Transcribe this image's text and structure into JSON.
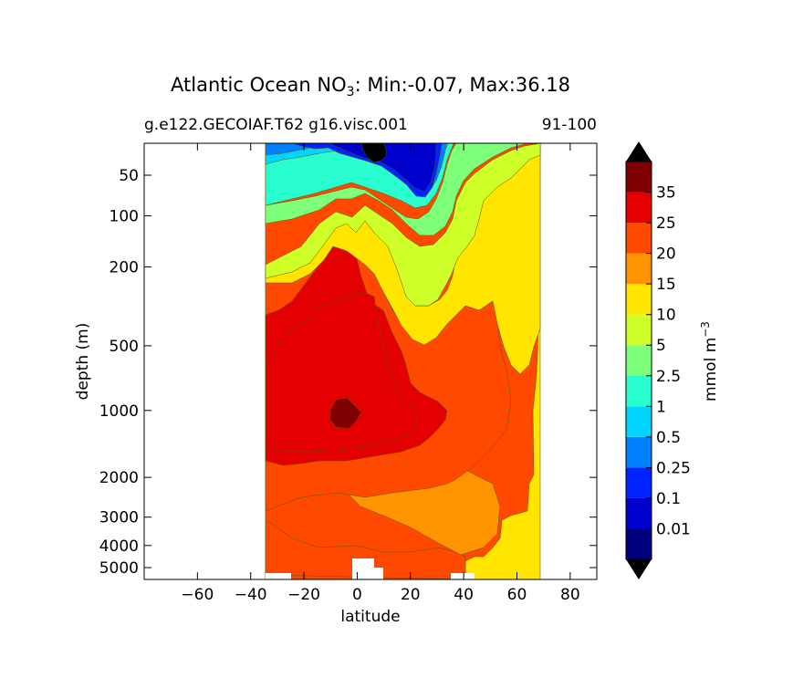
{
  "chart_data": {
    "type": "heatmap",
    "title_prefix": "Atlantic Ocean NO",
    "title_subscript": "3",
    "title_suffix": ": Min:-0.07, Max:36.18",
    "subtitle_left": "g.e122.GECOIAF.T62 g16.visc.001",
    "subtitle_right": "91-100",
    "xlabel": "latitude",
    "ylabel": "depth (m)",
    "xlim": [
      -80,
      90
    ],
    "x_ticks": [
      -60,
      -40,
      -20,
      0,
      20,
      40,
      60,
      80
    ],
    "x_tick_labels": [
      "−60",
      "−40",
      "−20",
      "0",
      "20",
      "40",
      "60",
      "80"
    ],
    "y_scale": "log-like (stretched depth)",
    "y_ticks": [
      50,
      100,
      200,
      500,
      1000,
      2000,
      3000,
      4000,
      5000
    ],
    "y_tick_labels": [
      "50",
      "100",
      "200",
      "500",
      "1000",
      "2000",
      "3000",
      "4000",
      "5000"
    ],
    "data_lat_range": [
      -34,
      69
    ],
    "colorbar": {
      "label_main": "mmol m",
      "label_exp": "−3",
      "levels": [
        "0.01",
        "0.1",
        "0.25",
        "0.5",
        "1",
        "2.5",
        "5",
        "10",
        "15",
        "20",
        "25",
        "35"
      ],
      "colors": [
        "#00007f",
        "#0000cd",
        "#0022ff",
        "#0080ff",
        "#00d4ff",
        "#29ffce",
        "#7dff7a",
        "#ceff29",
        "#ffe500",
        "#ff9400",
        "#ff4800",
        "#e40000",
        "#7f0000"
      ],
      "extend": "both"
    }
  }
}
